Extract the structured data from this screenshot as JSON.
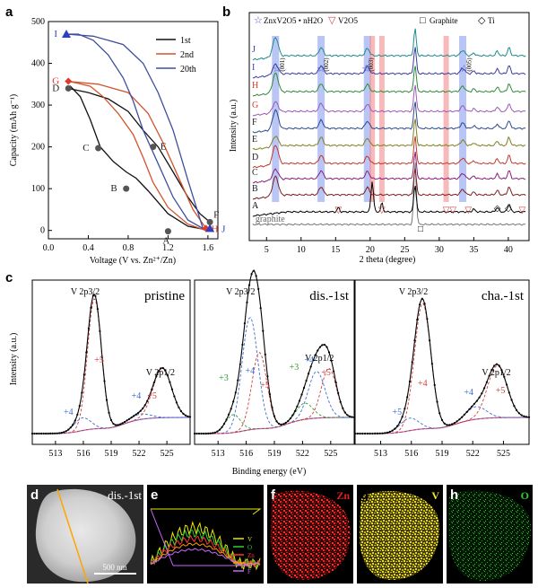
{
  "figure": {
    "panel_letters": [
      "a",
      "b",
      "c",
      "d",
      "e",
      "f",
      "g",
      "h"
    ]
  },
  "chart_data": [
    {
      "panel": "a",
      "type": "line",
      "xlabel": "Voltage (V vs. Zn²⁺/Zn)",
      "ylabel": "Capacity (mAh g⁻¹)",
      "xlim": [
        0.0,
        1.7
      ],
      "ylim": [
        -20,
        500
      ],
      "xticks": [
        0.0,
        0.4,
        0.8,
        1.2,
        1.6
      ],
      "yticks": [
        0,
        100,
        200,
        300,
        400,
        500
      ],
      "legend": {
        "placement": "top-right",
        "entries": [
          "1st",
          "2nd",
          "20th"
        ]
      },
      "series": [
        {
          "name": "1st",
          "color": "#111111",
          "x": [
            1.62,
            1.4,
            1.2,
            1.0,
            0.88,
            0.78,
            0.65,
            0.52,
            0.42,
            0.32,
            0.22,
            0.2
          ],
          "y": [
            0,
            10,
            40,
            95,
            125,
            140,
            165,
            200,
            265,
            320,
            345,
            340
          ]
        },
        {
          "name": "1st",
          "color": "#111111",
          "x": [
            0.2,
            0.4,
            0.6,
            0.8,
            0.95,
            1.1,
            1.25,
            1.4,
            1.52,
            1.62
          ],
          "y": [
            340,
            330,
            315,
            285,
            240,
            200,
            140,
            80,
            40,
            20
          ]
        },
        {
          "name": "2nd",
          "color": "#d2542c",
          "x": [
            1.58,
            1.4,
            1.2,
            1.05,
            0.95,
            0.85,
            0.7,
            0.55,
            0.42,
            0.3,
            0.2
          ],
          "y": [
            0,
            15,
            55,
            115,
            175,
            230,
            280,
            320,
            345,
            352,
            357
          ]
        },
        {
          "name": "2nd",
          "color": "#d2542c",
          "x": [
            0.2,
            0.5,
            0.8,
            1.0,
            1.15,
            1.3,
            1.45,
            1.58
          ],
          "y": [
            357,
            350,
            330,
            280,
            210,
            130,
            50,
            5
          ]
        },
        {
          "name": "20th",
          "color": "#3f4ea0",
          "x": [
            1.55,
            1.4,
            1.25,
            1.1,
            0.95,
            0.85,
            0.75,
            0.6,
            0.45,
            0.3,
            0.18
          ],
          "y": [
            5,
            25,
            80,
            160,
            240,
            310,
            365,
            420,
            455,
            470,
            470
          ]
        },
        {
          "name": "20th",
          "color": "#3f4ea0",
          "x": [
            0.18,
            0.45,
            0.75,
            0.95,
            1.1,
            1.25,
            1.4,
            1.55
          ],
          "y": [
            470,
            465,
            445,
            400,
            330,
            240,
            120,
            5
          ]
        }
      ],
      "point_labels": [
        {
          "text": "I",
          "x": 0.18,
          "y": 470,
          "color": "#2f3fbd",
          "marker": "triangle"
        },
        {
          "text": "G",
          "x": 0.2,
          "y": 357,
          "color": "#e0392b",
          "marker": "diamond"
        },
        {
          "text": "D",
          "x": 0.2,
          "y": 340,
          "color": "#222222",
          "marker": "circle"
        },
        {
          "text": "C",
          "x": 0.5,
          "y": 197,
          "color": "#222222",
          "marker": "circle"
        },
        {
          "text": "B",
          "x": 0.78,
          "y": 100,
          "color": "#222222",
          "marker": "circle"
        },
        {
          "text": "A",
          "x": 1.2,
          "y": -2,
          "color": "#222222",
          "marker": "circle"
        },
        {
          "text": "E",
          "x": 1.05,
          "y": 200,
          "color": "#222222",
          "marker": "circle"
        },
        {
          "text": "F",
          "x": 1.62,
          "y": 20,
          "color": "#222222",
          "marker": "circle"
        },
        {
          "text": "H",
          "x": 1.58,
          "y": 5,
          "color": "#e0392b",
          "marker": "diamond"
        },
        {
          "text": "J",
          "x": 1.62,
          "y": 5,
          "color": "#2f3fbd",
          "marker": "triangle"
        }
      ]
    },
    {
      "panel": "b",
      "type": "line",
      "xlabel": "2 theta (degree)",
      "ylabel": "Intensity (a.u.)",
      "xlim": [
        2.5,
        43
      ],
      "xticks": [
        5,
        10,
        15,
        20,
        25,
        30,
        35,
        40
      ],
      "legend": {
        "placement": "top",
        "entries": [
          "ZnxV2O5 • nH2O",
          "V2O5",
          "Graphite",
          "Ti"
        ],
        "symbols": [
          "☆",
          "▽",
          "□",
          "◇"
        ]
      },
      "bands_blue": [
        6.3,
        12.9,
        19.6,
        33.4
      ],
      "bands_red": [
        20.3,
        21.7,
        31.0
      ],
      "band_labels": [
        {
          "text": "(001)",
          "x": 6.5
        },
        {
          "text": "(002)",
          "x": 12.9
        },
        {
          "text": "(003)",
          "x": 19.4
        },
        {
          "text": "(005)",
          "x": 33.6
        }
      ],
      "traces": [
        {
          "label": "graphite",
          "color": "#777777",
          "offset": 0
        },
        {
          "label": "A",
          "color": "#000000",
          "offset": 1
        },
        {
          "label": "B",
          "color": "#7a1f1f",
          "offset": 2
        },
        {
          "label": "C",
          "color": "#8a1e7a",
          "offset": 3
        },
        {
          "label": "D",
          "color": "#c0392b",
          "offset": 4
        },
        {
          "label": "E",
          "color": "#7f7f1f",
          "offset": 5
        },
        {
          "label": "F",
          "color": "#2b4a8a",
          "offset": 6
        },
        {
          "label": "G",
          "color": "#9b59b6",
          "offset": 7
        },
        {
          "label": "H",
          "color": "#2e8b3a",
          "offset": 8
        },
        {
          "label": "I",
          "color": "#3a3aa0",
          "offset": 9
        },
        {
          "label": "J",
          "color": "#1f8a8a",
          "offset": 10
        }
      ],
      "trace_label_colors": {
        "A": "#000000",
        "B": "#222222",
        "C": "#222222",
        "D": "#222222",
        "E": "#222222",
        "F": "#222222",
        "G": "#e0392b",
        "H": "#e0392b",
        "I": "#2f3fbd",
        "J": "#2f3fbd"
      }
    },
    {
      "panel": "c",
      "type": "line",
      "xlabel": "Binding energy (eV)",
      "ylabel": "Intensity (a.u.)",
      "subplots": [
        {
          "title": "pristine",
          "xticks": [
            513,
            516,
            519,
            522,
            525
          ],
          "peak_labels": [
            "V 2p3/2",
            "V 2p1/2"
          ],
          "components": [
            "+5",
            "+4",
            "+4",
            "+5"
          ]
        },
        {
          "title": "dis.-1st",
          "xticks": [
            513,
            516,
            519,
            522,
            525
          ],
          "peak_labels": [
            "V 2p3/2",
            "V 2p1/2"
          ],
          "components": [
            "+3",
            "+4",
            "+5",
            "+3",
            "+4",
            "+5"
          ]
        },
        {
          "title": "cha.-1st",
          "xticks": [
            513,
            516,
            519,
            522,
            525
          ],
          "peak_labels": [
            "V 2p3/2",
            "V 2p1/2"
          ],
          "components": [
            "+4",
            "+5",
            "+4",
            "+5"
          ]
        }
      ]
    }
  ],
  "images": {
    "d": {
      "label": "dis.-1st",
      "scalebar": "500 nm"
    },
    "e": {
      "legend": [
        "V",
        "O",
        "Zn",
        "S",
        "F"
      ],
      "legend_colors": [
        "#e8e800",
        "#33cc33",
        "#ff3333",
        "#ff9900",
        "#cc66ff"
      ]
    },
    "f": {
      "element": "Zn",
      "color": "#e02020"
    },
    "g": {
      "element": "V",
      "color": "#f2ea2a"
    },
    "h": {
      "element": "O",
      "color": "#33cc33"
    }
  }
}
